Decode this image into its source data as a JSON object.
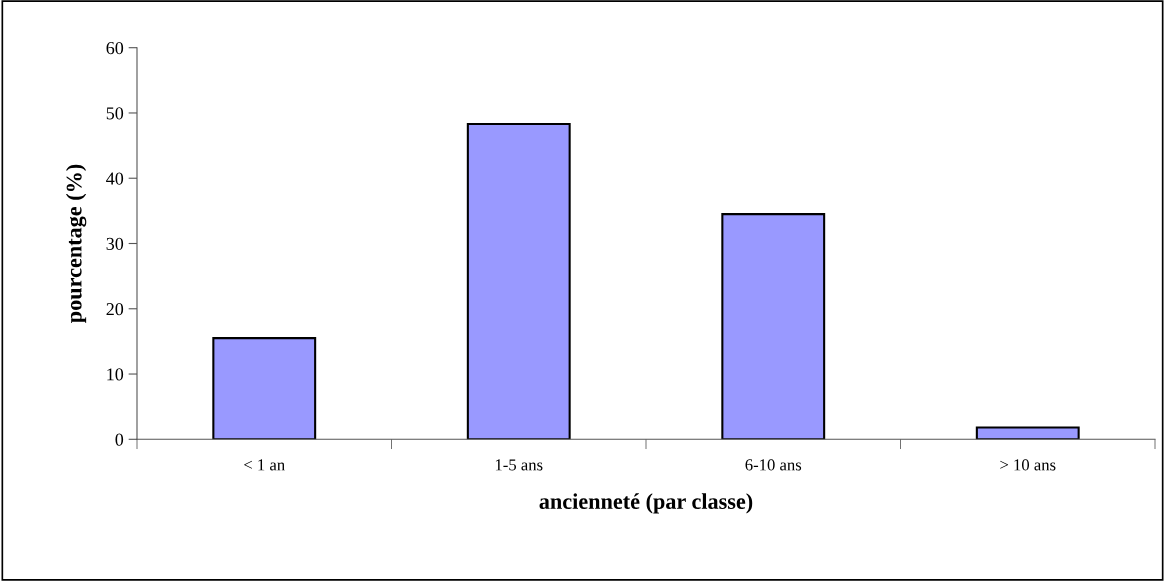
{
  "chart_data": {
    "type": "bar",
    "xlabel": "ancienneté (par classe)",
    "ylabel": "pourcentage (%)",
    "categories": [
      "< 1 an",
      "1-5 ans",
      "6-10 ans",
      "> 10 ans"
    ],
    "values": [
      15.5,
      48.3,
      34.5,
      1.8
    ],
    "color": "#9999ff",
    "ylim": [
      0,
      60
    ],
    "yticks": [
      0,
      10,
      20,
      30,
      40,
      50,
      60
    ],
    "grid": false,
    "legend": false
  }
}
